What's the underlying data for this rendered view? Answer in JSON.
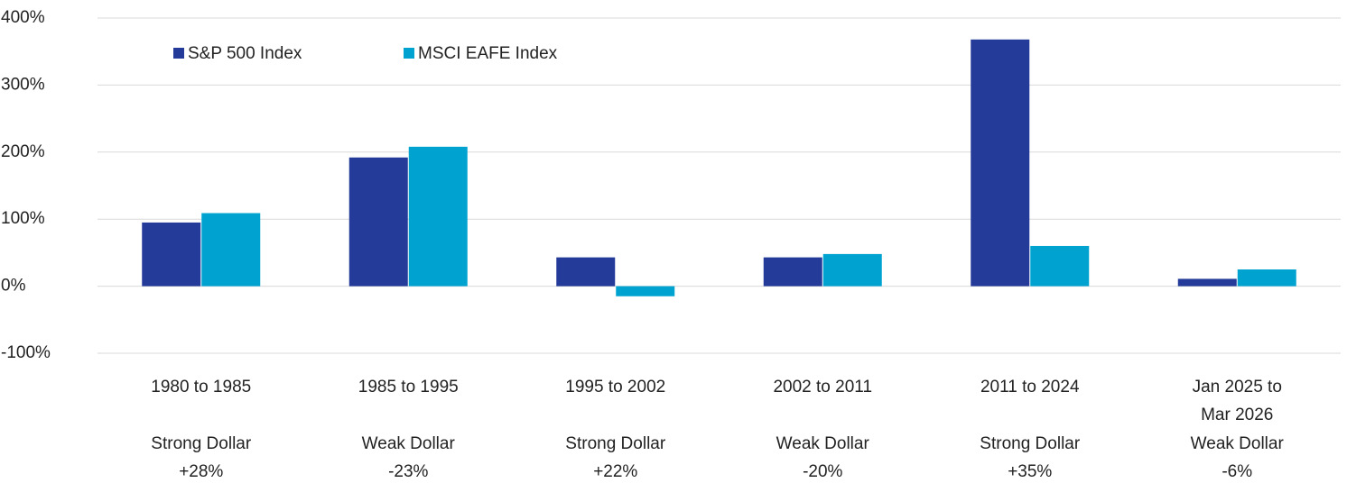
{
  "chart_data": {
    "type": "bar",
    "categories": [
      [
        "1980 to 1985"
      ],
      [
        "1985 to 1995"
      ],
      [
        "1995 to 2002"
      ],
      [
        "2002 to 2011"
      ],
      [
        "2011 to 2024"
      ],
      [
        "Jan 2025 to",
        "Mar 2026"
      ]
    ],
    "dollar_regime": [
      "Strong Dollar",
      "Weak Dollar",
      "Strong Dollar",
      "Weak Dollar",
      "Strong Dollar",
      "Weak Dollar"
    ],
    "dollar_change": [
      "+28%",
      "-23%",
      "+22%",
      "-20%",
      "+35%",
      "-6%"
    ],
    "series": [
      {
        "name": "S&P 500 Index",
        "color": "#253b99",
        "values": [
          95,
          192,
          43,
          43,
          368,
          11
        ]
      },
      {
        "name": "MSCI EAFE Index",
        "color": "#00a3d0",
        "values": [
          109,
          208,
          -15,
          48,
          60,
          25
        ]
      }
    ],
    "ylim": [
      -100,
      400
    ],
    "yticks": [
      {
        "value": -100,
        "label": "-100%"
      },
      {
        "value": 0,
        "label": "0%"
      },
      {
        "value": 100,
        "label": "100%"
      },
      {
        "value": 200,
        "label": "200%"
      },
      {
        "value": 300,
        "label": "300%"
      },
      {
        "value": 400,
        "label": "400%"
      }
    ],
    "grid": true,
    "legend": "top-left"
  }
}
